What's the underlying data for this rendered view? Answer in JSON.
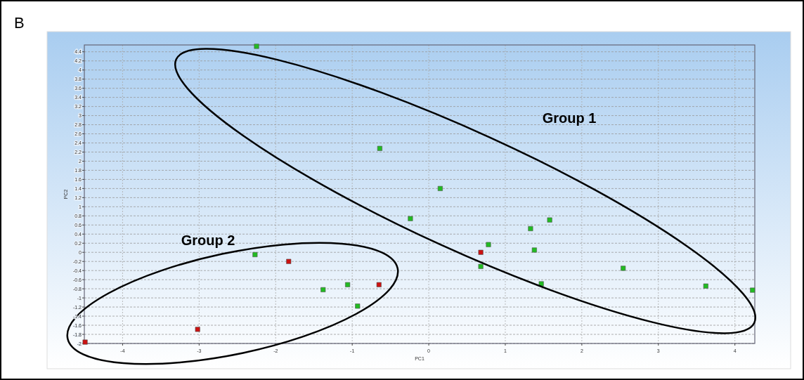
{
  "chart_data": {
    "type": "scatter",
    "title": "B",
    "xlabel": "PC1",
    "ylabel": "PC2",
    "marker": "square",
    "grid": true,
    "xlim": [
      -4.5,
      4.26
    ],
    "xticks": [
      -4,
      -3,
      -2,
      -1,
      0,
      1,
      2,
      3,
      4
    ],
    "ylim": [
      -2,
      4.55
    ],
    "yticks": [
      -2,
      -1.8,
      -1.6,
      -1.4,
      -1.2,
      -1,
      -0.8,
      -0.6,
      -0.4,
      -0.2,
      0,
      0.2,
      0.4,
      0.6,
      0.8,
      1,
      1.2,
      1.4,
      1.6,
      1.8,
      2,
      2.2,
      2.4,
      2.6,
      2.8,
      3,
      3.2,
      3.4,
      3.6,
      3.8,
      4,
      4.2,
      4.4
    ],
    "series": [
      {
        "color": "#22bb22",
        "x": [
          -2.25,
          -0.64,
          0.15,
          -0.24,
          1.33,
          1.58,
          0.78,
          1.38,
          0.68,
          2.54,
          1.47,
          3.62,
          4.23,
          -2.27,
          -1.38,
          -1.06,
          -0.93
        ],
        "values": [
          4.52,
          2.28,
          1.4,
          0.74,
          0.52,
          0.71,
          0.17,
          0.05,
          -0.31,
          -0.35,
          -0.69,
          -0.74,
          -0.83,
          -0.05,
          -0.82,
          -0.71,
          -1.18
        ]
      },
      {
        "color": "#cc1111",
        "x": [
          -1.83,
          -0.65,
          0.68,
          -3.02,
          -4.49
        ],
        "values": [
          -0.2,
          -0.71,
          0,
          -1.69,
          -1.97
        ]
      }
    ],
    "annotations": [
      "Group 1",
      "Group 2"
    ]
  }
}
